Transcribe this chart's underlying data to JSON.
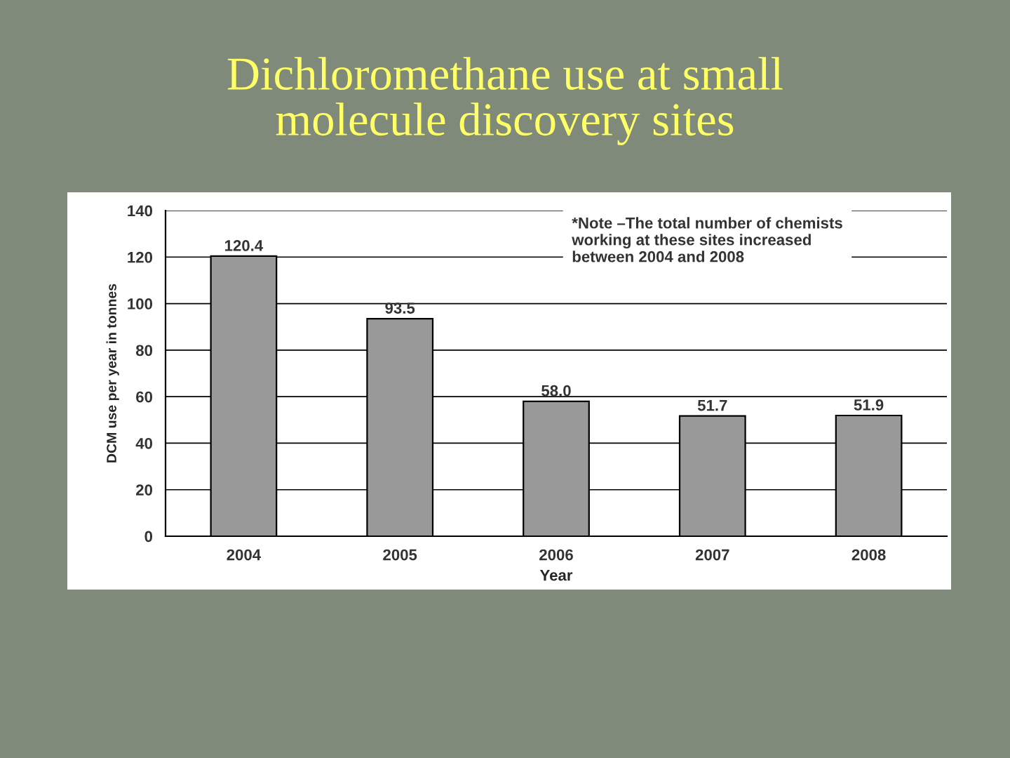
{
  "chart_data": {
    "type": "bar",
    "title": "Dichloromethane use at small\nmolecule discovery sites",
    "categories": [
      "2004",
      "2005",
      "2006",
      "2007",
      "2008"
    ],
    "values": [
      120.4,
      93.5,
      58.0,
      51.7,
      51.9
    ],
    "value_labels": [
      "120.4",
      "93.5",
      "58.0",
      "51.7",
      "51.9"
    ],
    "color": "#999999",
    "xlabel": "Year",
    "ylabel": "DCM use per year in tonnes",
    "ylim": [
      0,
      140
    ],
    "yticks": [
      0,
      20,
      40,
      60,
      80,
      100,
      120,
      140
    ],
    "grid": "y",
    "annotations": [
      {
        "text": "*Note –The total number of chemists\nworking at these sites increased\nbetween 2004 and 2008"
      }
    ]
  }
}
